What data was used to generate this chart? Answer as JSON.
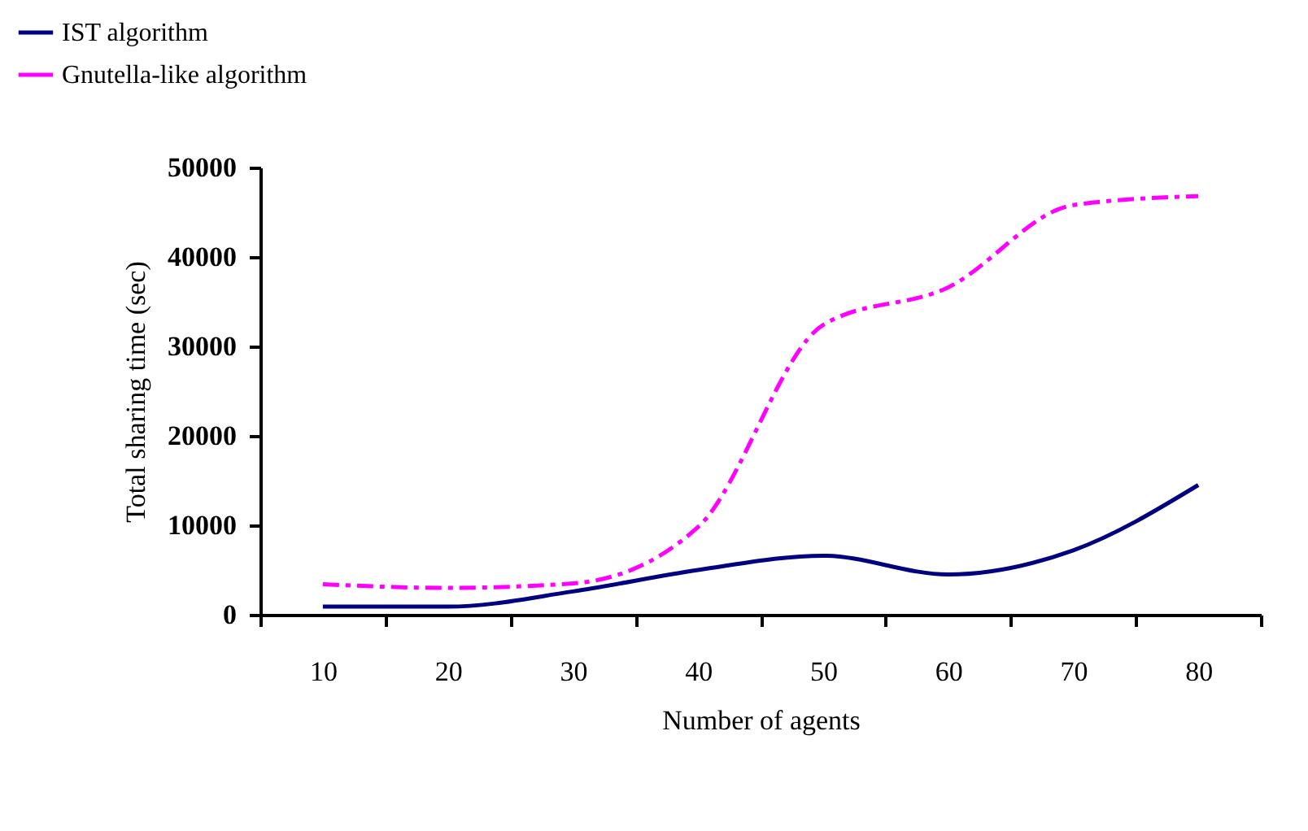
{
  "chart_data": {
    "type": "line",
    "xlabel": "Number of agents",
    "ylabel": "Total sharing time (sec)",
    "categories": [
      "10",
      "20",
      "30",
      "40",
      "50",
      "60",
      "70",
      "80"
    ],
    "series": [
      {
        "name": "IST algorithm",
        "color": "#000080",
        "line_style": "solid",
        "values": [
          900,
          900,
          2600,
          5000,
          6600,
          4500,
          7200,
          14500
        ]
      },
      {
        "name": "Gnutella-like algorithm",
        "color": "#ff00ff",
        "line_style": "dashed",
        "values": [
          3400,
          3000,
          3500,
          9800,
          32400,
          36600,
          45800,
          46800
        ]
      }
    ],
    "ylim": [
      0,
      50000
    ],
    "yticks": [
      0,
      10000,
      20000,
      30000,
      40000,
      50000
    ],
    "grid": false,
    "legend": "top left",
    "marker": "none"
  }
}
